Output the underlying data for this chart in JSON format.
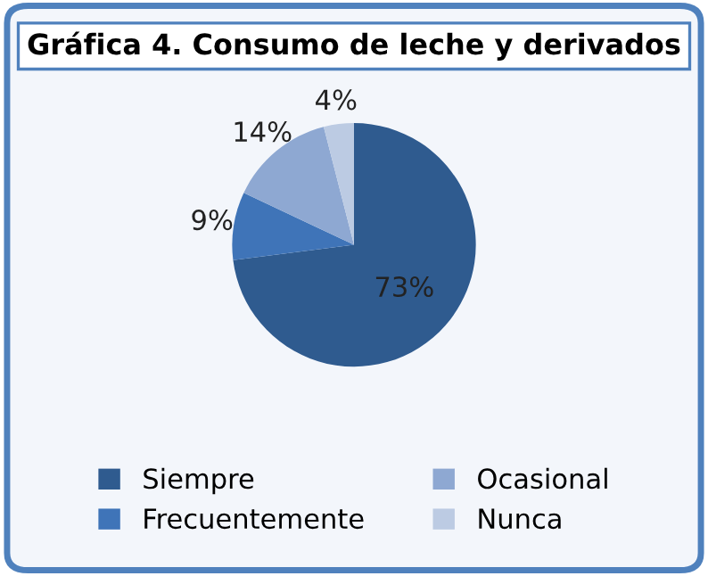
{
  "chart_data": {
    "type": "pie",
    "title": "Gráfica 4. Consumo de leche y derivados",
    "categories": [
      "Siempre",
      "Frecuentemente",
      "Ocasional",
      "Nunca"
    ],
    "values": [
      73,
      9,
      14,
      4
    ],
    "value_labels": [
      "73%",
      "9%",
      "14%",
      "4%"
    ],
    "colors": [
      "#2f5b8f",
      "#3f74b8",
      "#8ea8d2",
      "#bccbe3"
    ],
    "legend": "bottom"
  }
}
